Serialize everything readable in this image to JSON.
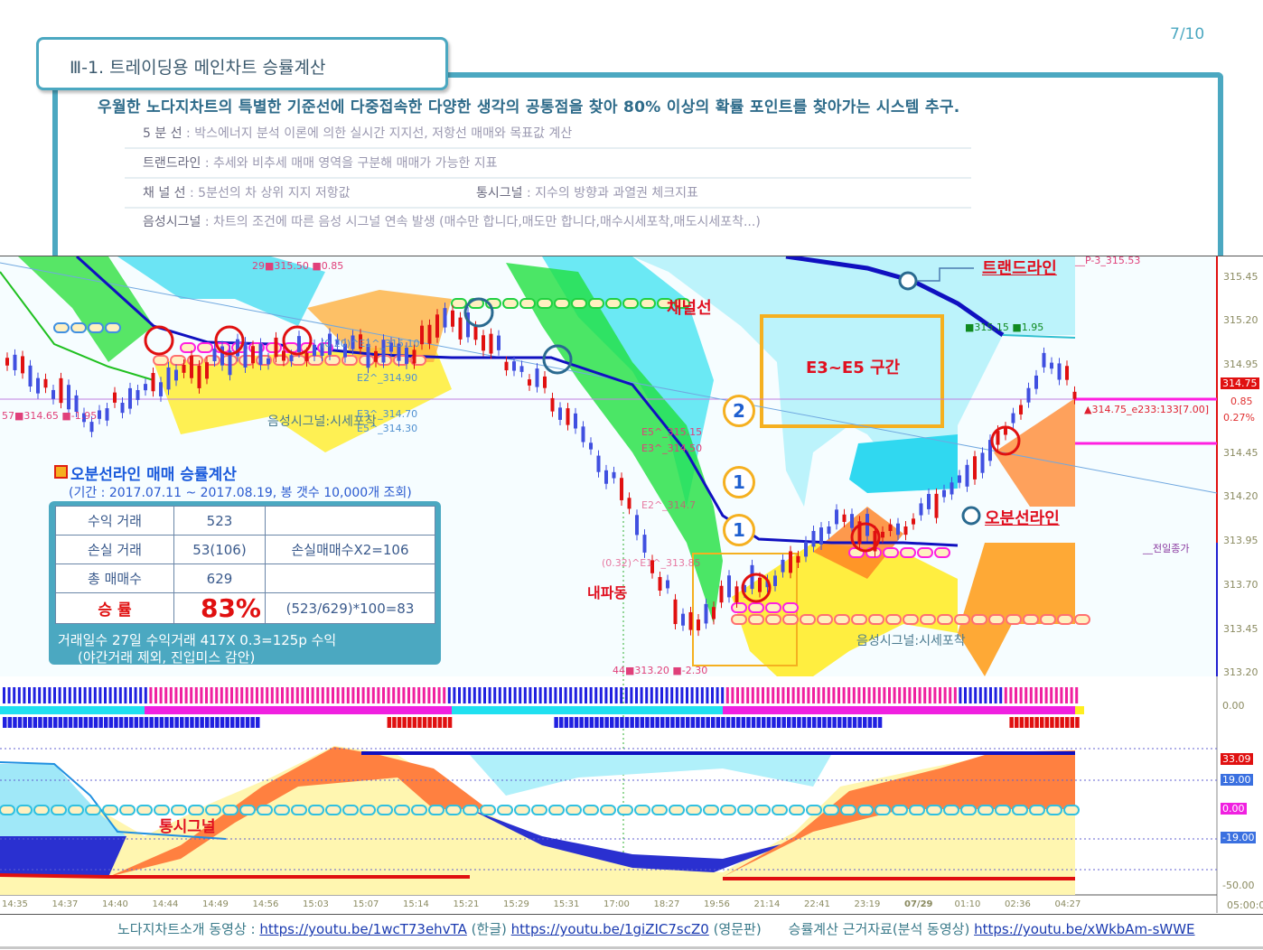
{
  "page_number": "7/10",
  "title": "Ⅲ-1. 트레이딩용 메인차트  승률계산",
  "headline": "우월한 노다지차트의 특별한 기준선에 다중접속한 다양한 생각의 공통점을 찾아 80% 이상의 확률 포인트를 찾아가는 시스템 추구.",
  "descriptions": [
    {
      "term": "5  분  선",
      "text": " : 박스에너지 분석 이론에 의한 실시간 지지선, 저항선 매매와 목표값 계산"
    },
    {
      "term": "트랜드라인",
      "text": " : 추세와 비추세 매매 영역을 구분해 매매가 가능한 지표"
    },
    {
      "term": "채  널  선",
      "text": " : 5분선의 차 상위 지지 저항값",
      "term2": "통시그널",
      "text2": " : 지수의 방향과 과열권 체크지표"
    },
    {
      "term": "음성시그널",
      "text": " : 차트의 조건에 따른 음성 시그널 연속 발생 (매수만 합니다,매도만 합니다,매수시세포착,매도시세포착...)"
    }
  ],
  "chart": {
    "price_axis": [
      "315.45",
      "315.20",
      "314.95",
      "314.45",
      "314.20",
      "313.95",
      "313.70",
      "313.45",
      "313.20"
    ],
    "current_price_tag": "314.75",
    "change": "0.85",
    "change_pct": "0.27%",
    "indicator_axis": [
      "0.00"
    ],
    "osc_axis": [
      "-50.00"
    ],
    "osc_tags": {
      "value": "33.09",
      "upper": "19.00",
      "zero": "0.00",
      "lower": "-19.00"
    },
    "time_axis": [
      "14:35",
      "14:37",
      "14:40",
      "14:44",
      "14:49",
      "14:56",
      "15:03",
      "15:07",
      "15:14",
      "15:21",
      "15:29",
      "15:31",
      "17:00",
      "18:27",
      "19:56",
      "21:14",
      "22:41",
      "23:19",
      "07/29",
      "01:10",
      "02:36",
      "04:27"
    ],
    "time_end": "05:00:00",
    "colors": {
      "cloud": "#20d8f0",
      "trend": "#1010c0",
      "up_candle": "#e01010",
      "down_candle": "#4050e0",
      "signal": "#ff20e0",
      "accent": "#4ba8c1"
    },
    "labels": {
      "trendline": "트랜드라인",
      "channel": "채널선",
      "e3e5": "E3~E5 구간",
      "five_min_line": "오분선라인",
      "inner_wave": "내파동",
      "voice_signal_1": "음성시그널:시세포착",
      "voice_signal_2": "음성시그널:시세포착",
      "tong_signal": "통시그널",
      "prev_close": "__전일종가",
      "num2": "2",
      "num1a": "1",
      "num1b": "1",
      "p3": "__P-3_315.53",
      "top_left": "29■315.50 ■0.85",
      "left_low": "57■314.65 ■-1.95",
      "e1": "(0.20)^E1^_315.10",
      "e2": "E2^_314.90",
      "e3": "E3^_314.70",
      "e5": "E5^_314.30",
      "e5b": "E5^_315.15",
      "e3b": "E3^_314.50",
      "e2b": "E2^_314.7",
      "e1b": "(0.32)^E1^_313.85",
      "low": "44■313.20 ■-2.30",
      "high_green": "■315.15 ■1.95",
      "price_note": "▲314.75_e233:133[7.00]"
    }
  },
  "stats": {
    "title": "오분선라인 매매 승률계산",
    "period": "(기간 : 2017.07.11 ~ 2017.08.19, 봉 갯수 10,000개 조회)",
    "rows": [
      {
        "label": "수익 거래",
        "value": "523",
        "note": ""
      },
      {
        "label": "손실 거래",
        "value": "53(106)",
        "note": "손실매매수X2=106"
      },
      {
        "label": "총 매매수",
        "value": "629",
        "note": ""
      },
      {
        "label": "승  률",
        "value": "83%",
        "note": "(523/629)*100=83"
      }
    ],
    "footer1": "거래일수 27일 수익거래 417X 0.3=125p 수익",
    "footer2": "(야간거래 제외, 진입미스 감안)"
  },
  "footer": {
    "label1": "노다지차트소개 동영상 : ",
    "link1": "https://youtu.be/1wcT73ehvTA",
    "note1": " (한글) ",
    "link2": "https://youtu.be/1giZIC7scZ0",
    "note2": " (영문판)",
    "label2": "승률계산 근거자료(분석 동영상) ",
    "link3": "https://youtu.be/xWkbAm-sWWE"
  }
}
